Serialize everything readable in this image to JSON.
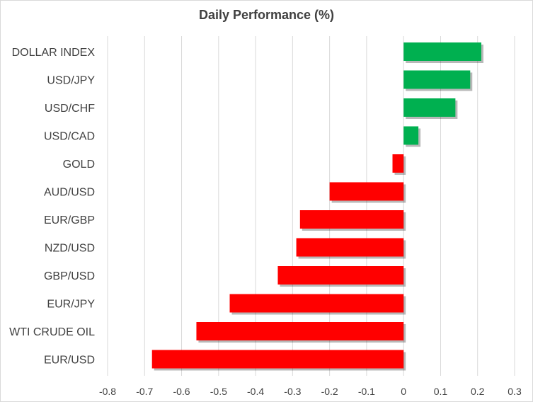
{
  "chart_data": {
    "type": "bar",
    "orientation": "horizontal",
    "title": "Daily Performance (%)",
    "xlabel": "",
    "ylabel": "",
    "xlim": [
      -0.8,
      0.3
    ],
    "xticks": [
      "-0.8",
      "-0.7",
      "-0.6",
      "-0.5",
      "-0.4",
      "-0.3",
      "-0.2",
      "-0.1",
      "0",
      "0.1",
      "0.2",
      "0.3"
    ],
    "grid": "vertical",
    "legend": "none",
    "categories": [
      "DOLLAR INDEX",
      "USD/JPY",
      "USD/CHF",
      "USD/CAD",
      "GOLD",
      "AUD/USD",
      "EUR/GBP",
      "NZD/USD",
      "GBP/USD",
      "EUR/JPY",
      "WTI CRUDE OIL",
      "EUR/USD"
    ],
    "values": [
      0.21,
      0.18,
      0.14,
      0.04,
      -0.03,
      -0.2,
      -0.28,
      -0.29,
      -0.34,
      -0.47,
      -0.56,
      -0.68
    ],
    "colors": {
      "positive": "#00b050",
      "negative": "#ff0000",
      "grid": "#d9d9d9",
      "text": "#404040"
    }
  }
}
